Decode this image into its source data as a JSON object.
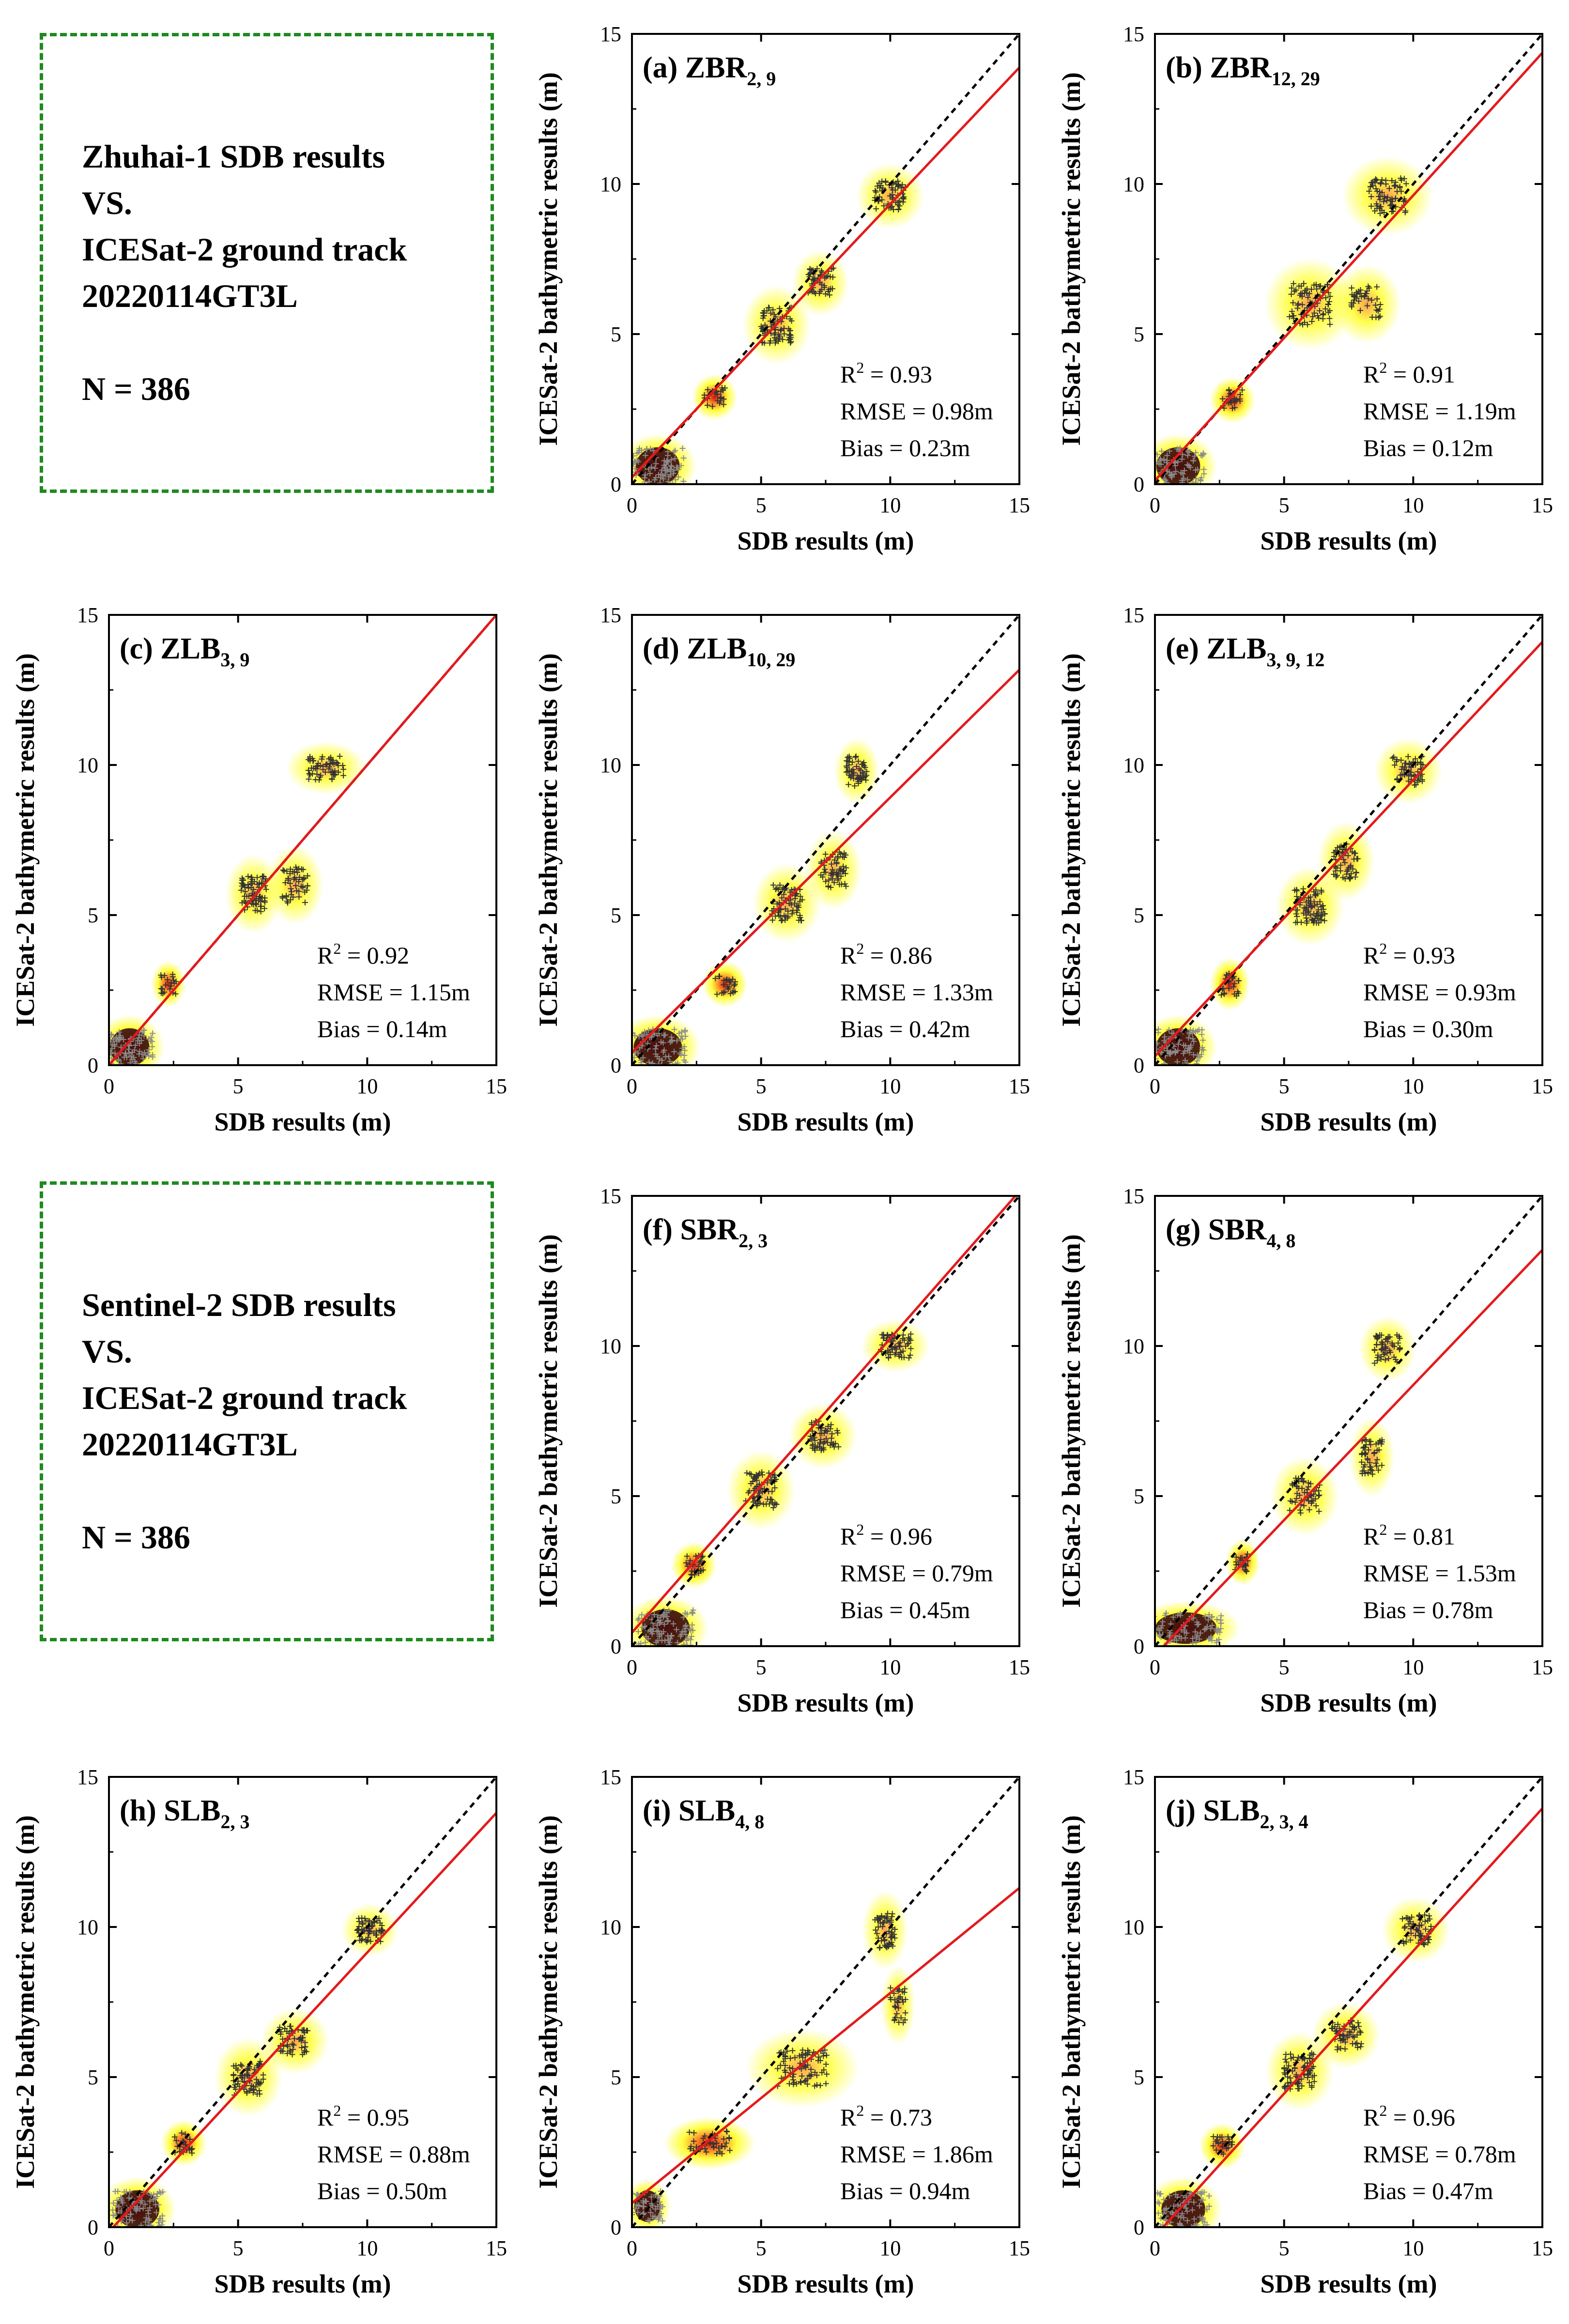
{
  "info_boxes": [
    {
      "lines": [
        "Zhuhai-1 SDB results",
        "VS.",
        "ICESat-2 ground track",
        "20220114GT3L"
      ],
      "count": "N =  386"
    },
    {
      "lines": [
        "Sentinel-2 SDB results",
        "VS.",
        "ICESat-2 ground track",
        "20220114GT3L"
      ],
      "count": "N =  386"
    }
  ],
  "colors": {
    "fit_line": "#e31a1c",
    "one_to_one": "#000000",
    "points": "#333333",
    "density_low": "#ffff00",
    "density_mid": "#ff7a00",
    "density_high": "#cc0000",
    "box_border": "#1f8a1f"
  },
  "chart_data": [
    {
      "id": "a",
      "type": "scatter",
      "label": "(a) ZBR",
      "subscript": "2, 9",
      "xlabel": "SDB results (m)",
      "ylabel": "ICESat-2 bathymetric results (m)",
      "xlim": [
        0,
        15
      ],
      "ylim": [
        0,
        15
      ],
      "xticks": [
        "0",
        "5",
        "10",
        "15"
      ],
      "yticks": [
        "0",
        "5",
        "10",
        "15"
      ],
      "fit": {
        "slope": 0.91,
        "intercept": 0.23
      },
      "stats": {
        "r2_value": " = 0.93",
        "rmse": "RMSE = 0.98m",
        "bias": "Bias = 0.23m"
      },
      "clusters": [
        [
          1.0,
          0.6,
          1.0,
          0.6,
          0.35,
          80
        ],
        [
          3.2,
          2.9,
          0.4,
          0.35,
          0.3,
          25
        ],
        [
          5.6,
          5.3,
          0.6,
          0.6,
          0.5,
          80
        ],
        [
          7.3,
          6.7,
          0.5,
          0.5,
          0.4,
          55
        ],
        [
          10.0,
          9.6,
          0.6,
          0.5,
          0.4,
          60
        ]
      ]
    },
    {
      "id": "b",
      "type": "scatter",
      "label": "(b) ZBR",
      "subscript": "12, 29",
      "xlabel": "SDB results (m)",
      "ylabel": "ICESat-2 bathymetric results (m)",
      "xlim": [
        0,
        15
      ],
      "ylim": [
        0,
        15
      ],
      "xticks": [
        "0",
        "5",
        "10",
        "15"
      ],
      "yticks": [
        "0",
        "5",
        "10",
        "15"
      ],
      "fit": {
        "slope": 0.95,
        "intercept": 0.12
      },
      "stats": {
        "r2_value": " = 0.91",
        "rmse": "RMSE = 1.19m",
        "bias": "Bias = 0.12m"
      },
      "clusters": [
        [
          0.9,
          0.6,
          1.0,
          0.6,
          0.35,
          80
        ],
        [
          3.0,
          2.8,
          0.4,
          0.35,
          0.3,
          25
        ],
        [
          6.0,
          6.0,
          0.8,
          0.7,
          0.6,
          80
        ],
        [
          8.2,
          6.0,
          0.6,
          0.6,
          0.4,
          40
        ],
        [
          9.0,
          9.6,
          0.8,
          0.6,
          0.5,
          70
        ]
      ]
    },
    {
      "id": "c",
      "type": "scatter",
      "label": "(c) ZLB",
      "subscript": "3, 9",
      "xlabel": "SDB results (m)",
      "ylabel": "ICESat-2 bathymetric results (m)",
      "xlim": [
        0,
        15
      ],
      "ylim": [
        0,
        15
      ],
      "xticks": [
        "0",
        "5",
        "10",
        "15"
      ],
      "yticks": [
        "0",
        "5",
        "10",
        "15"
      ],
      "fit": {
        "slope": 1.0,
        "intercept": 0.0
      },
      "stats": {
        "r2_value": " = 0.92",
        "rmse": "RMSE = 1.15m",
        "bias": "Bias = 0.14m"
      },
      "clusters": [
        [
          0.8,
          0.6,
          0.9,
          0.6,
          0.35,
          80
        ],
        [
          2.3,
          2.7,
          0.3,
          0.35,
          0.3,
          20
        ],
        [
          5.6,
          5.7,
          0.5,
          0.6,
          0.5,
          80
        ],
        [
          7.2,
          6.0,
          0.5,
          0.6,
          0.4,
          50
        ],
        [
          8.4,
          9.9,
          0.7,
          0.4,
          0.4,
          60
        ]
      ]
    },
    {
      "id": "d",
      "type": "scatter",
      "label": "(d) ZLB",
      "subscript": "10, 29",
      "xlabel": "SDB results (m)",
      "ylabel": "ICESat-2 bathymetric results (m)",
      "xlim": [
        0,
        15
      ],
      "ylim": [
        0,
        15
      ],
      "xticks": [
        "0",
        "5",
        "10",
        "15"
      ],
      "yticks": [
        "0",
        "5",
        "10",
        "15"
      ],
      "fit": {
        "slope": 0.85,
        "intercept": 0.42
      },
      "stats": {
        "r2_value": " = 0.86",
        "rmse": "RMSE = 1.33m",
        "bias": "Bias = 0.42m"
      },
      "clusters": [
        [
          1.0,
          0.6,
          1.1,
          0.6,
          0.35,
          80
        ],
        [
          3.6,
          2.7,
          0.4,
          0.35,
          0.3,
          25
        ],
        [
          6.0,
          5.4,
          0.6,
          0.6,
          0.5,
          70
        ],
        [
          7.8,
          6.5,
          0.5,
          0.6,
          0.4,
          60
        ],
        [
          8.7,
          9.8,
          0.4,
          0.5,
          0.4,
          55
        ]
      ]
    },
    {
      "id": "e",
      "type": "scatter",
      "label": "(e) ZLB",
      "subscript": "3, 9, 12",
      "xlabel": "SDB results (m)",
      "ylabel": "ICESat-2 bathymetric results (m)",
      "xlim": [
        0,
        15
      ],
      "ylim": [
        0,
        15
      ],
      "xticks": [
        "0",
        "5",
        "10",
        "15"
      ],
      "yticks": [
        "0",
        "5",
        "10",
        "15"
      ],
      "fit": {
        "slope": 0.92,
        "intercept": 0.3
      },
      "stats": {
        "r2_value": " = 0.93",
        "rmse": "RMSE = 0.93m",
        "bias": "Bias = 0.30m"
      },
      "clusters": [
        [
          0.9,
          0.6,
          1.0,
          0.6,
          0.35,
          80
        ],
        [
          2.9,
          2.7,
          0.35,
          0.4,
          0.3,
          25
        ],
        [
          6.0,
          5.3,
          0.6,
          0.6,
          0.5,
          80
        ],
        [
          7.4,
          6.8,
          0.5,
          0.6,
          0.4,
          55
        ],
        [
          9.8,
          9.8,
          0.6,
          0.5,
          0.4,
          60
        ]
      ]
    },
    {
      "id": "f",
      "type": "scatter",
      "label": "(f) SBR",
      "subscript": "2, 3",
      "xlabel": "SDB results (m)",
      "ylabel": "ICESat-2 bathymetric results (m)",
      "xlim": [
        0,
        15
      ],
      "ylim": [
        0,
        15
      ],
      "xticks": [
        "0",
        "5",
        "10",
        "15"
      ],
      "yticks": [
        "0",
        "5",
        "10",
        "15"
      ],
      "fit": {
        "slope": 0.98,
        "intercept": 0.45
      },
      "stats": {
        "r2_value": " = 0.96",
        "rmse": "RMSE = 0.79m",
        "bias": "Bias = 0.45m"
      },
      "clusters": [
        [
          1.3,
          0.6,
          1.1,
          0.6,
          0.4,
          90
        ],
        [
          2.4,
          2.7,
          0.4,
          0.35,
          0.3,
          25
        ],
        [
          5.0,
          5.2,
          0.6,
          0.6,
          0.5,
          70
        ],
        [
          7.4,
          7.0,
          0.6,
          0.5,
          0.4,
          55
        ],
        [
          10.2,
          10.0,
          0.6,
          0.4,
          0.4,
          60
        ]
      ]
    },
    {
      "id": "g",
      "type": "scatter",
      "label": "(g) SBR",
      "subscript": "4, 8",
      "xlabel": "SDB results (m)",
      "ylabel": "ICESat-2 bathymetric results (m)",
      "xlim": [
        0,
        15
      ],
      "ylim": [
        0,
        15
      ],
      "xticks": [
        "0",
        "5",
        "10",
        "15"
      ],
      "yticks": [
        "0",
        "5",
        "10",
        "15"
      ],
      "fit": {
        "slope": 0.9,
        "intercept": -0.3
      },
      "stats": {
        "r2_value": " = 0.81",
        "rmse": "RMSE = 1.53m",
        "bias": "Bias = 0.78m"
      },
      "clusters": [
        [
          1.2,
          0.6,
          1.4,
          0.5,
          0.3,
          90
        ],
        [
          3.4,
          2.8,
          0.3,
          0.35,
          0.3,
          20
        ],
        [
          5.8,
          5.0,
          0.6,
          0.6,
          0.5,
          55
        ],
        [
          8.4,
          6.3,
          0.4,
          0.6,
          0.4,
          50
        ],
        [
          9.0,
          9.9,
          0.5,
          0.5,
          0.4,
          55
        ]
      ]
    },
    {
      "id": "h",
      "type": "scatter",
      "label": "(h) SLB",
      "subscript": "2, 3",
      "xlabel": "SDB results (m)",
      "ylabel": "ICESat-2 bathymetric results (m)",
      "xlim": [
        0,
        15
      ],
      "ylim": [
        0,
        15
      ],
      "xticks": [
        "0",
        "5",
        "10",
        "15"
      ],
      "yticks": [
        "0",
        "5",
        "10",
        "15"
      ],
      "fit": {
        "slope": 0.93,
        "intercept": -0.15
      },
      "stats": {
        "r2_value": " = 0.95",
        "rmse": "RMSE = 0.88m",
        "bias": "Bias = 0.50m"
      },
      "clusters": [
        [
          1.1,
          0.6,
          1.0,
          0.6,
          0.35,
          80
        ],
        [
          2.9,
          2.8,
          0.4,
          0.35,
          0.3,
          25
        ],
        [
          5.4,
          5.0,
          0.6,
          0.6,
          0.5,
          70
        ],
        [
          7.2,
          6.2,
          0.6,
          0.5,
          0.4,
          55
        ],
        [
          10.1,
          9.9,
          0.5,
          0.4,
          0.4,
          55
        ]
      ]
    },
    {
      "id": "i",
      "type": "scatter",
      "label": "(i) SLB",
      "subscript": "4, 8",
      "xlabel": "SDB results (m)",
      "ylabel": "ICESat-2 bathymetric results (m)",
      "xlim": [
        0,
        15
      ],
      "ylim": [
        0,
        15
      ],
      "xticks": [
        "0",
        "5",
        "10",
        "15"
      ],
      "yticks": [
        "0",
        "5",
        "10",
        "15"
      ],
      "fit": {
        "slope": 0.7,
        "intercept": 0.8
      },
      "stats": {
        "r2_value": " = 0.73",
        "rmse": "RMSE = 1.86m",
        "bias": "Bias = 0.94m"
      },
      "clusters": [
        [
          0.6,
          0.7,
          0.6,
          0.5,
          0.3,
          50
        ],
        [
          3.0,
          2.8,
          0.8,
          0.4,
          0.4,
          40
        ],
        [
          6.6,
          5.3,
          1.0,
          0.6,
          0.5,
          80
        ],
        [
          9.8,
          9.9,
          0.4,
          0.6,
          0.4,
          55
        ],
        [
          10.3,
          7.4,
          0.3,
          0.6,
          0.3,
          30
        ]
      ]
    },
    {
      "id": "j",
      "type": "scatter",
      "label": "(j) SLB",
      "subscript": "2, 3, 4",
      "xlabel": "SDB results (m)",
      "ylabel": "ICESat-2 bathymetric results (m)",
      "xlim": [
        0,
        15
      ],
      "ylim": [
        0,
        15
      ],
      "xticks": [
        "0",
        "5",
        "10",
        "15"
      ],
      "yticks": [
        "0",
        "5",
        "10",
        "15"
      ],
      "fit": {
        "slope": 0.95,
        "intercept": -0.3
      },
      "stats": {
        "r2_value": " = 0.96",
        "rmse": "RMSE = 0.78m",
        "bias": "Bias = 0.47m"
      },
      "clusters": [
        [
          1.1,
          0.6,
          1.0,
          0.6,
          0.35,
          80
        ],
        [
          2.6,
          2.7,
          0.4,
          0.35,
          0.3,
          25
        ],
        [
          5.6,
          5.2,
          0.6,
          0.6,
          0.5,
          80
        ],
        [
          7.4,
          6.4,
          0.6,
          0.5,
          0.4,
          55
        ],
        [
          10.1,
          9.9,
          0.6,
          0.5,
          0.4,
          60
        ]
      ]
    }
  ]
}
